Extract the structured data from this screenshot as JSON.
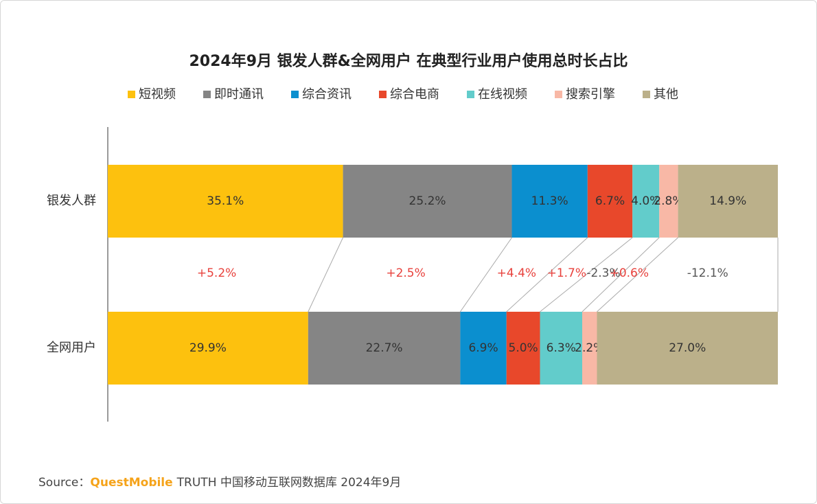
{
  "chart_data": {
    "type": "stacked_bar_horizontal_100",
    "title": "2024年9月 银发人群&全网用户 在典型行业用户使用总时长占比",
    "categories": [
      "银发人群",
      "全网用户"
    ],
    "xlim": [
      0,
      100
    ],
    "series": [
      {
        "name": "短视频",
        "color": "#fdc10e",
        "values": [
          35.1,
          29.9
        ],
        "value_labels": [
          "35.1%",
          "29.9%"
        ]
      },
      {
        "name": "即时通讯",
        "color": "#858585",
        "values": [
          25.2,
          22.7
        ],
        "value_labels": [
          "25.2%",
          "22.7%"
        ]
      },
      {
        "name": "综合资讯",
        "color": "#0b8fcf",
        "values": [
          11.3,
          6.9
        ],
        "value_labels": [
          "11.3%",
          "6.9%"
        ]
      },
      {
        "name": "综合电商",
        "color": "#e8482b",
        "values": [
          6.7,
          5.0
        ],
        "value_labels": [
          "6.7%",
          "5.0%"
        ]
      },
      {
        "name": "在线视频",
        "color": "#62cccb",
        "values": [
          4.0,
          6.3
        ],
        "value_labels": [
          "4.0%",
          "6.3%"
        ]
      },
      {
        "name": "搜索引擎",
        "color": "#f8b8a6",
        "values": [
          2.8,
          2.2
        ],
        "value_labels": [
          "2.8%",
          "2.2%"
        ]
      },
      {
        "name": "其他",
        "color": "#bbb08a",
        "values": [
          14.9,
          27.0
        ],
        "value_labels": [
          "14.9%",
          "27.0%"
        ]
      }
    ],
    "differences": {
      "values": [
        5.2,
        2.5,
        4.4,
        1.7,
        -2.3,
        0.6,
        -12.1
      ],
      "value_labels": [
        "+5.2%",
        "+2.5%",
        "+4.4%",
        "+1.7%",
        "-2.3%",
        "+0.6%",
        "-12.1%"
      ],
      "positive_color": "#e8413c",
      "negative_color": "#555555"
    },
    "source": {
      "prefix": "Source：",
      "brand": "QuestMobile",
      "text": "TRUTH 中国移动互联网数据库 2024年9月"
    }
  }
}
